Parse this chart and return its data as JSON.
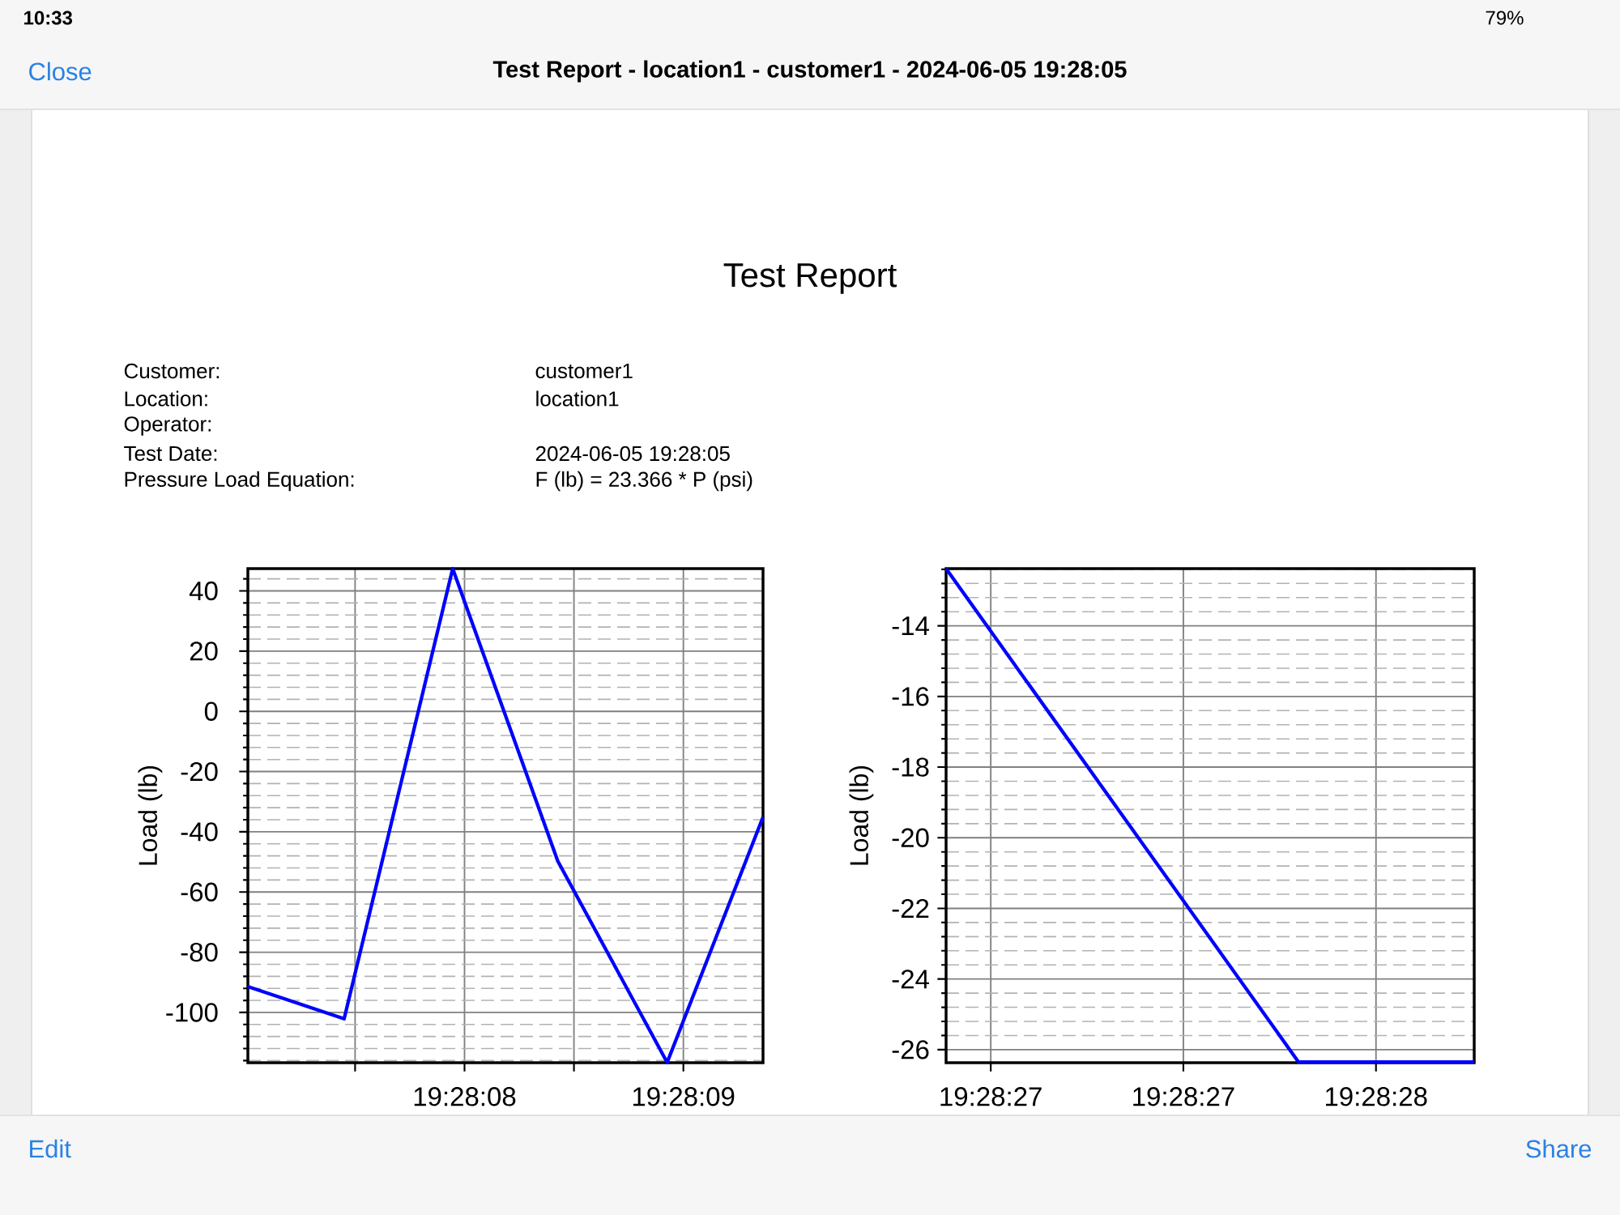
{
  "chart_data": [
    {
      "type": "other",
      "title": "Test Report - location1 - customer1 - 2024-06-05 19:28:05",
      "annotations": [
        "10:33",
        "79%",
        "Close",
        "Edit",
        "Share"
      ]
    },
    {
      "type": "other",
      "title": "Test Report",
      "annotations": [
        "Customer:",
        "customer1",
        "Location:",
        "location1",
        "Operator:",
        "Test Date:",
        "2024-06-05 19:28:05",
        "Pressure Load Equation:",
        "F (lb) = 23.366 * P (psi)"
      ]
    },
    {
      "type": "line",
      "ylabel": "Load (lb)",
      "x": [
        19.46861389,
        19.46873611,
        19.46887389,
        19.46900722,
        19.46914611,
        19.46926778
      ],
      "series": [
        {
          "color": "#0000ff",
          "values": [
            -91.4,
            -102.1,
            47.4,
            -49.7,
            -116.6,
            -35.1
          ]
        }
      ],
      "xlim": [
        19.46861389,
        19.46926778
      ],
      "xticks": [
        {
          "value": 19.46875,
          "label": null
        },
        {
          "value": 19.46888889,
          "label": "19:28:08"
        },
        {
          "value": 19.46902778,
          "label": null
        },
        {
          "value": 19.46916667,
          "label": "19:28:09"
        }
      ],
      "ylim": [
        -116.7,
        47.4
      ],
      "yticks": [
        -100,
        -80,
        -60,
        -40,
        -20,
        0,
        20,
        40
      ],
      "grid": true
    },
    {
      "type": "line",
      "ylabel": "Load (lb)",
      "x": [
        19.474065,
        19.47431917,
        19.47444583
      ],
      "series": [
        {
          "color": "#0000ff",
          "values": [
            -12.38,
            -26.35,
            -26.35
          ]
        }
      ],
      "xlim": [
        19.474065,
        19.47444583
      ],
      "xticks": [
        {
          "value": 19.47409722,
          "label": "19:28:27"
        },
        {
          "value": 19.47423611,
          "label": "19:28:27"
        },
        {
          "value": 19.474375,
          "label": "19:28:28"
        }
      ],
      "ylim": [
        -26.37,
        -12.38
      ],
      "yticks": [
        -26,
        -24,
        -22,
        -20,
        -18,
        -16,
        -14
      ],
      "grid": true
    }
  ]
}
